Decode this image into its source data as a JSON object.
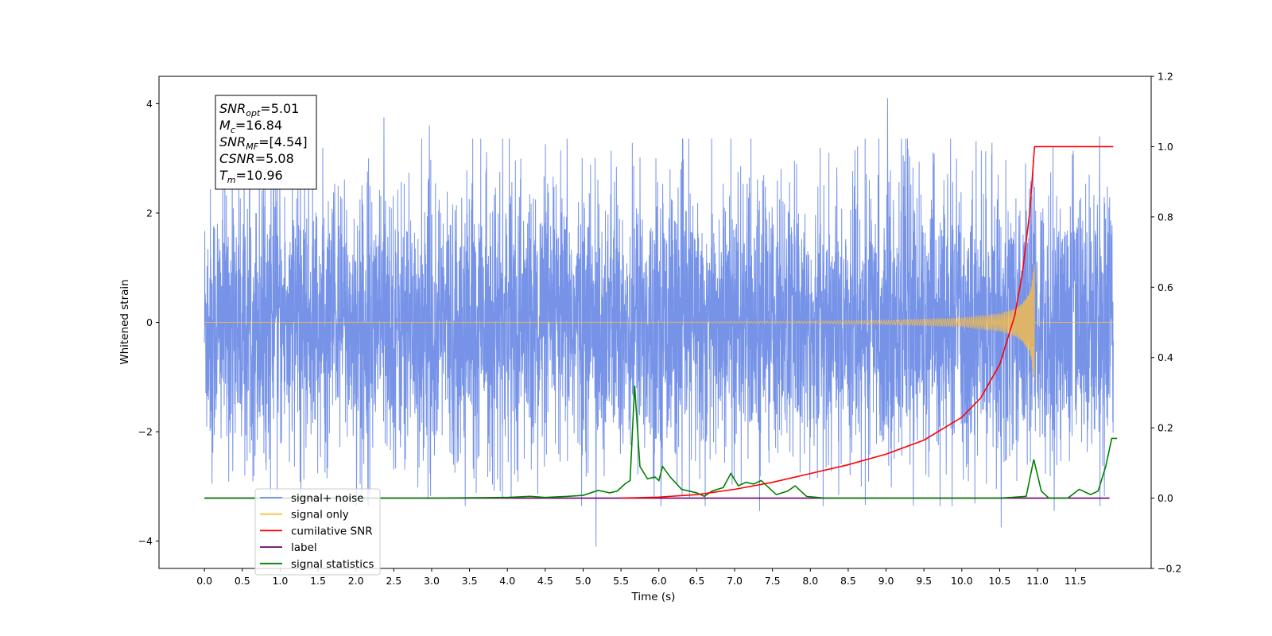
{
  "chart_data": {
    "type": "line",
    "xlabel": "Time (s)",
    "ylabel": "Whitened strain",
    "xlim": [
      -0.6,
      12.5
    ],
    "ylim": [
      -4.5,
      4.5
    ],
    "y2lim": [
      -0.2,
      1.2
    ],
    "xticks": [
      0.0,
      0.5,
      1.0,
      1.5,
      2.0,
      2.5,
      3.0,
      3.5,
      4.0,
      4.5,
      5.0,
      5.5,
      6.0,
      6.5,
      7.0,
      7.5,
      8.0,
      8.5,
      9.0,
      9.5,
      10.0,
      10.5,
      11.0,
      11.5
    ],
    "xtick_labels": [
      "0.0",
      "0.5",
      "1.0",
      "1.5",
      "2.0",
      "2.5",
      "3.0",
      "3.5",
      "4.0",
      "4.5",
      "5.0",
      "5.5",
      "6.0",
      "6.5",
      "7.0",
      "7.5",
      "8.0",
      "8.5",
      "9.0",
      "9.5",
      "10.0",
      "10.5",
      "11.0",
      "11.5"
    ],
    "yticks": [
      -4,
      -2,
      0,
      2,
      4
    ],
    "ytick_labels": [
      "−4",
      "−2",
      "0",
      "2",
      "4"
    ],
    "y2ticks": [
      -0.2,
      0.0,
      0.2,
      0.4,
      0.6,
      0.8,
      1.0,
      1.2
    ],
    "y2tick_labels": [
      "−0.2",
      "0.0",
      "0.2",
      "0.4",
      "0.6",
      "0.8",
      "1.0",
      "1.2"
    ],
    "annotation": {
      "lines": [
        {
          "base": "SNR",
          "sub": "opt",
          "value": "=5.01"
        },
        {
          "base": "M",
          "sub": "c",
          "value": "=16.84"
        },
        {
          "base": "SNR",
          "sub": "MF",
          "value": "=[4.54]"
        },
        {
          "base": "CSNR",
          "sub": "",
          "value": "=5.08"
        },
        {
          "base": "T",
          "sub": "m",
          "value": "=10.96"
        }
      ]
    },
    "legend": {
      "placement": "lower-left",
      "entries": [
        {
          "label": "signal+ noise",
          "color": "#6a8ae6"
        },
        {
          "label": "signal only",
          "color": "#ffbf40"
        },
        {
          "label": "cumilative SNR",
          "color": "#ff0000"
        },
        {
          "label": "label",
          "color": "#6a006a"
        },
        {
          "label": "signal statistics",
          "color": "#008000"
        }
      ]
    },
    "series": [
      {
        "name": "signal+ noise",
        "axis": "left",
        "color": "#6a8ae6",
        "x_range": [
          0.0,
          12.0
        ],
        "typical_amplitude": 2.4,
        "outliers": [
          {
            "x": 0.1,
            "y": -2.95
          },
          {
            "x": 2.37,
            "y": 3.75
          },
          {
            "x": 5.17,
            "y": -4.1
          },
          {
            "x": 9.02,
            "y": 4.1
          },
          {
            "x": 10.52,
            "y": -3.75
          },
          {
            "x": 11.22,
            "y": -3.45
          },
          {
            "x": 11.82,
            "y": 3.4
          },
          {
            "x": 7.33,
            "y": -3.45
          },
          {
            "x": 2.97,
            "y": 3.6
          },
          {
            "x": 4.05,
            "y": -3.2
          }
        ]
      },
      {
        "name": "signal only",
        "axis": "left",
        "color": "#ffbf40",
        "points": [
          [
            0.0,
            0.0
          ],
          [
            6.0,
            0.005
          ],
          [
            8.0,
            0.02
          ],
          [
            9.0,
            0.04
          ],
          [
            10.0,
            0.08
          ],
          [
            10.5,
            0.16
          ],
          [
            10.7,
            0.25
          ],
          [
            10.8,
            0.35
          ],
          [
            10.9,
            0.55
          ],
          [
            10.96,
            1.1
          ],
          [
            10.97,
            0.0
          ],
          [
            12.0,
            0.0
          ]
        ]
      },
      {
        "name": "cumilative SNR",
        "axis": "right",
        "color": "#ff0000",
        "points": [
          [
            5.5,
            0.0
          ],
          [
            6.0,
            0.003
          ],
          [
            6.5,
            0.01
          ],
          [
            7.0,
            0.025
          ],
          [
            7.5,
            0.045
          ],
          [
            8.0,
            0.07
          ],
          [
            8.5,
            0.095
          ],
          [
            9.0,
            0.125
          ],
          [
            9.5,
            0.165
          ],
          [
            10.0,
            0.23
          ],
          [
            10.25,
            0.285
          ],
          [
            10.5,
            0.38
          ],
          [
            10.7,
            0.52
          ],
          [
            10.8,
            0.64
          ],
          [
            10.9,
            0.82
          ],
          [
            10.96,
            1.0
          ],
          [
            12.0,
            1.0
          ]
        ]
      },
      {
        "name": "label",
        "axis": "right",
        "color": "#6a006a",
        "points": [
          [
            0.0,
            0.0
          ],
          [
            11.95,
            0.0
          ]
        ]
      },
      {
        "name": "signal statistics",
        "axis": "right",
        "color": "#008000",
        "points": [
          [
            0.0,
            0.0
          ],
          [
            3.0,
            0.0
          ],
          [
            4.0,
            0.002
          ],
          [
            4.3,
            0.005
          ],
          [
            4.5,
            0.002
          ],
          [
            4.8,
            0.005
          ],
          [
            5.0,
            0.008
          ],
          [
            5.2,
            0.022
          ],
          [
            5.35,
            0.015
          ],
          [
            5.45,
            0.02
          ],
          [
            5.55,
            0.04
          ],
          [
            5.62,
            0.05
          ],
          [
            5.68,
            0.32
          ],
          [
            5.75,
            0.09
          ],
          [
            5.85,
            0.055
          ],
          [
            5.95,
            0.06
          ],
          [
            6.0,
            0.05
          ],
          [
            6.05,
            0.09
          ],
          [
            6.15,
            0.06
          ],
          [
            6.3,
            0.025
          ],
          [
            6.5,
            0.015
          ],
          [
            6.6,
            0.005
          ],
          [
            6.7,
            0.02
          ],
          [
            6.85,
            0.03
          ],
          [
            6.95,
            0.07
          ],
          [
            7.05,
            0.035
          ],
          [
            7.15,
            0.045
          ],
          [
            7.25,
            0.04
          ],
          [
            7.35,
            0.05
          ],
          [
            7.45,
            0.03
          ],
          [
            7.55,
            0.01
          ],
          [
            7.7,
            0.02
          ],
          [
            7.8,
            0.035
          ],
          [
            7.95,
            0.005
          ],
          [
            8.2,
            0.0
          ],
          [
            10.5,
            0.0
          ],
          [
            10.85,
            0.005
          ],
          [
            10.95,
            0.11
          ],
          [
            11.05,
            0.02
          ],
          [
            11.15,
            0.0
          ],
          [
            11.4,
            0.0
          ],
          [
            11.55,
            0.025
          ],
          [
            11.7,
            0.01
          ],
          [
            11.8,
            0.02
          ],
          [
            11.9,
            0.09
          ],
          [
            11.98,
            0.17
          ],
          [
            12.05,
            0.17
          ]
        ]
      }
    ]
  }
}
